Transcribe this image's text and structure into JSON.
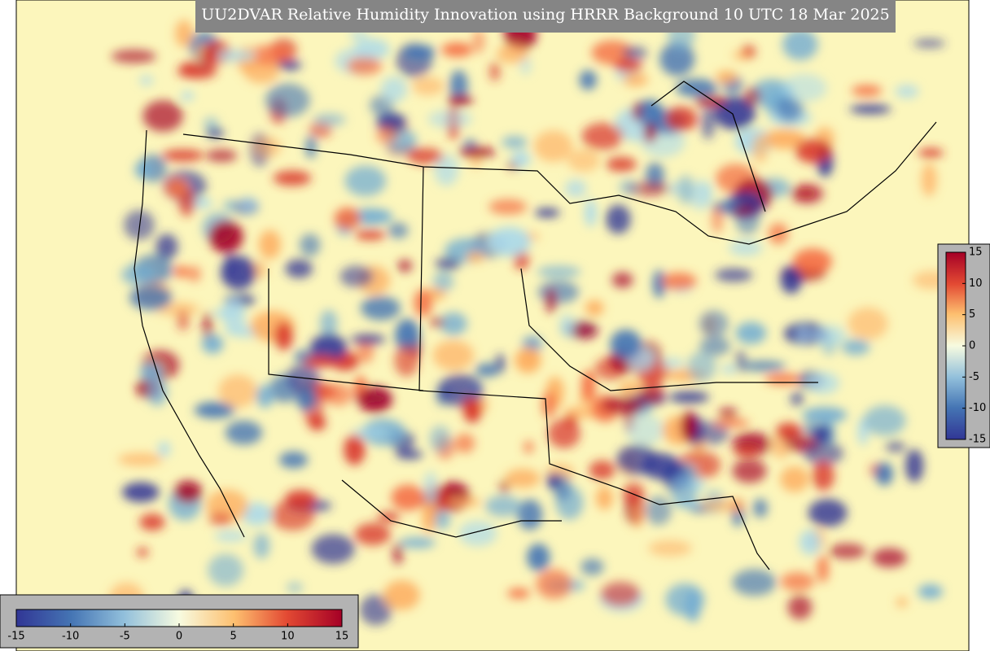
{
  "title": "UU2DVAR Relative Humidity Innovation using HRRR Background 10 UTC 18 Mar 2025",
  "colorbars": [
    {
      "orientation": "horizontal",
      "range": [
        -15,
        15
      ],
      "ticks": [
        -15,
        -10,
        -5,
        0,
        5,
        10,
        15
      ]
    },
    {
      "orientation": "vertical",
      "range": [
        -15,
        15
      ],
      "ticks": [
        15,
        10,
        5,
        0,
        -5,
        -10,
        -15
      ]
    }
  ]
}
